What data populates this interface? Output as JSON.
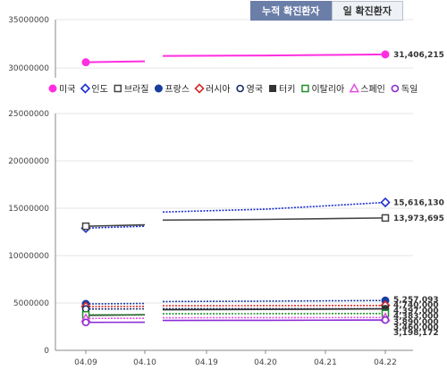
{
  "tabs": [
    {
      "label": "누적 확진환자",
      "active": true
    },
    {
      "label": "일 확진환자",
      "active": false
    }
  ],
  "chart_data": {
    "type": "line",
    "broken_axis": true,
    "categories": [
      "04.09",
      "04.10",
      "04.19",
      "04.20",
      "04.21",
      "04.22"
    ],
    "upper_axis": {
      "ylim": [
        29000000,
        35000000
      ],
      "ticks": [
        30000000,
        35000000
      ]
    },
    "lower_axis": {
      "ylim": [
        0,
        25000000
      ],
      "ticks": [
        0,
        5000000,
        10000000,
        15000000,
        20000000,
        25000000
      ]
    },
    "legend_position": "middle",
    "series": [
      {
        "name": "미국",
        "color": "#ff2ee0",
        "marker": "circle-filled",
        "panel": "upper",
        "dash": "solid",
        "values": [
          30600000,
          30700000,
          31250000,
          31300000,
          31350000,
          31406215
        ],
        "end_label": "31,406,215"
      },
      {
        "name": "인도",
        "color": "#1d2fd1",
        "marker": "diamond-open",
        "panel": "lower",
        "dash": "dotted",
        "values": [
          12900000,
          13100000,
          14600000,
          14900000,
          15250000,
          15616130
        ],
        "end_label": "15,616,130"
      },
      {
        "name": "브라질",
        "color": "#444444",
        "marker": "square-open",
        "panel": "lower",
        "dash": "solid",
        "values": [
          13100000,
          13250000,
          13750000,
          13820000,
          13900000,
          13973695
        ],
        "end_label": "13,973,695"
      },
      {
        "name": "프랑스",
        "color": "#1a3d9e",
        "marker": "circle-filled",
        "panel": "lower",
        "dash": "dotted",
        "values": [
          4900000,
          4950000,
          5150000,
          5190000,
          5225000,
          5257093
        ],
        "end_label": "5,257,093"
      },
      {
        "name": "러시아",
        "color": "#d42a2a",
        "marker": "diamond-open",
        "panel": "lower",
        "dash": "dotted",
        "values": [
          4620000,
          4640000,
          4710000,
          4720000,
          4730000,
          4740000
        ],
        "end_label": "4,740,000"
      },
      {
        "name": "영국",
        "color": "#1a2a6a",
        "marker": "circle-open",
        "panel": "lower",
        "dash": "dotted",
        "values": [
          4370000,
          4375000,
          4390000,
          4393000,
          4395000,
          4397000
        ],
        "end_label": "4,397,000"
      },
      {
        "name": "터키",
        "color": "#333333",
        "marker": "square-filled",
        "panel": "lower",
        "dash": "solid",
        "values": [
          3700000,
          3750000,
          4290000,
          4320000,
          4350000,
          4383000
        ],
        "end_label": "4,383,000"
      },
      {
        "name": "이탈리아",
        "color": "#1f8f2a",
        "marker": "square-open",
        "panel": "lower",
        "dash": "dotted",
        "values": [
          3750000,
          3765000,
          3860000,
          3870000,
          3880000,
          3890000
        ],
        "end_label": "3,890,000"
      },
      {
        "name": "스페인",
        "color": "#e14fe0",
        "marker": "triangle-open",
        "panel": "lower",
        "dash": "dotted",
        "values": [
          3370000,
          3380000,
          3440000,
          3450000,
          3455000,
          3460000
        ],
        "end_label": "3,460,000"
      },
      {
        "name": "독일",
        "color": "#8a2bd6",
        "marker": "circle-open",
        "panel": "lower",
        "dash": "solid",
        "values": [
          2950000,
          2970000,
          3150000,
          3170000,
          3185000,
          3198172
        ],
        "end_label": "3,198,172"
      }
    ]
  }
}
